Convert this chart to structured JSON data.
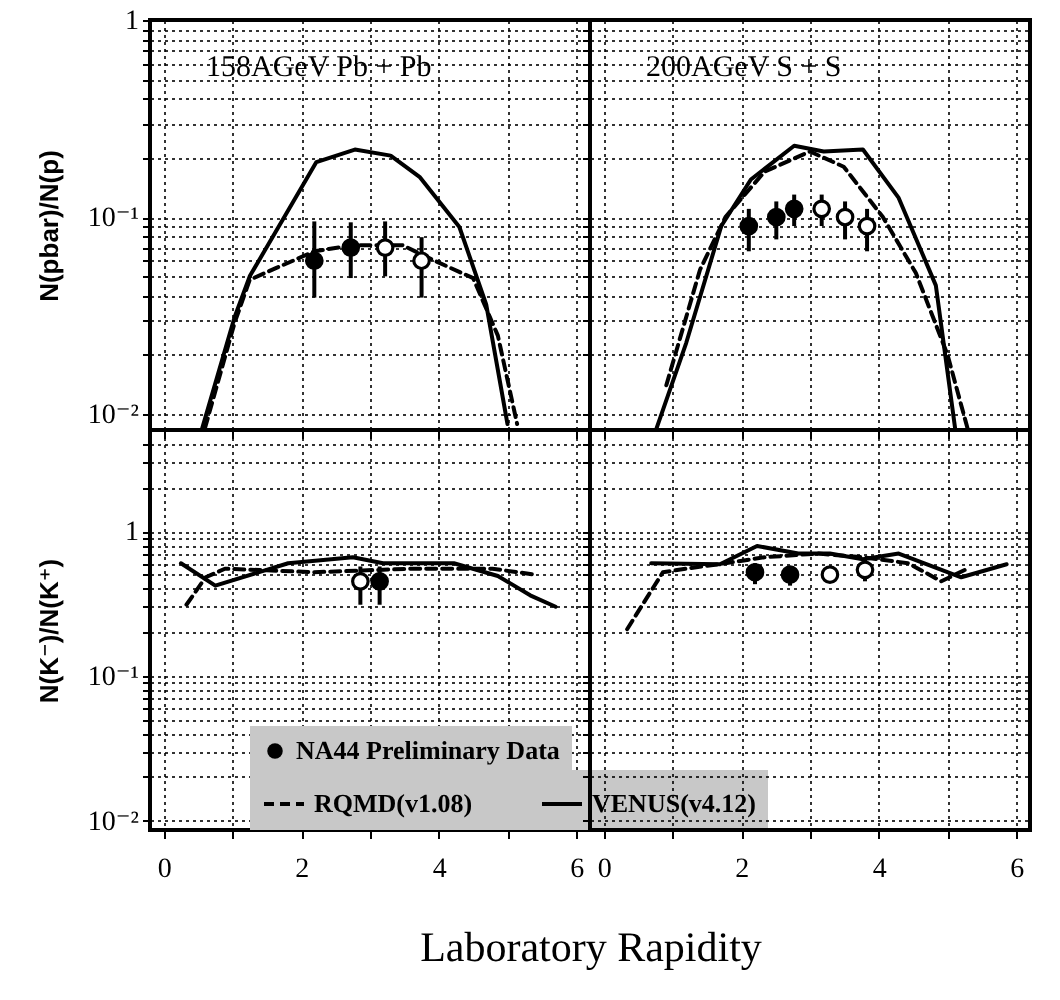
{
  "chart_data": [
    {
      "type": "line",
      "ylabel": "N(pbar)/N(p)",
      "annotations": [
        "158AGeV Pb + Pb"
      ],
      "xlim": [
        -0.2,
        6.2
      ],
      "ylim": [
        0.0083,
        1
      ],
      "log": "y",
      "grid": true,
      "tick_labels": "y",
      "xticks": [
        0,
        {
          "value": 1,
          "label": null
        },
        2,
        {
          "value": 3,
          "label": null
        },
        4,
        {
          "value": 5,
          "label": null
        },
        6
      ],
      "yticks": [
        {
          "value": 0.01,
          "label": "10⁻²"
        },
        {
          "value": 0.02,
          "label": null
        },
        {
          "value": 0.03,
          "label": null
        },
        {
          "value": 0.04,
          "label": null
        },
        {
          "value": 0.05,
          "label": null
        },
        {
          "value": 0.06,
          "label": null
        },
        {
          "value": 0.07,
          "label": null
        },
        {
          "value": 0.08,
          "label": null
        },
        {
          "value": 0.09,
          "label": null
        },
        {
          "value": 0.1,
          "label": "10⁻¹"
        },
        {
          "value": 0.2,
          "label": null
        },
        {
          "value": 0.3,
          "label": null
        },
        {
          "value": 0.4,
          "label": null
        },
        {
          "value": 0.5,
          "label": null
        },
        {
          "value": 0.6,
          "label": null
        },
        {
          "value": 0.7,
          "label": null
        },
        {
          "value": 0.8,
          "label": null
        },
        {
          "value": 0.9,
          "label": null
        },
        1
      ],
      "series": [
        {
          "type": "line",
          "line_style": "dashed",
          "color": "#000000",
          "x": [
            0.6,
            1.03,
            1.25,
            1.63,
            2.19,
            2.75,
            3.47,
            3.94,
            4.5,
            4.86,
            5.14
          ],
          "values": [
            0.0085,
            0.029,
            0.048,
            0.055,
            0.067,
            0.072,
            0.072,
            0.06,
            0.049,
            0.025,
            0.0089
          ]
        },
        {
          "type": "line",
          "line_style": "solid",
          "color": "#000000",
          "x": [
            0.56,
            1.03,
            1.25,
            2.22,
            2.78,
            3.3,
            3.72,
            4.3,
            4.69,
            5.0
          ],
          "values": [
            0.0085,
            0.031,
            0.05,
            0.19,
            0.22,
            0.205,
            0.16,
            0.089,
            0.036,
            0.0089
          ]
        },
        {
          "type": "scatter",
          "marker": "circle",
          "color": "#000000",
          "x": [
            2.19,
            2.72
          ],
          "values": [
            0.06,
            0.07
          ],
          "errors": [
            [
              0.039,
              0.095
            ],
            [
              0.049,
              0.094
            ]
          ]
        },
        {
          "type": "scatter",
          "marker": "circle",
          "color": "#ffffff",
          "x": [
            3.22,
            3.75
          ],
          "values": [
            0.07,
            0.06
          ],
          "errors": [
            [
              0.05,
              0.095
            ],
            [
              0.039,
              0.079
            ]
          ]
        }
      ]
    },
    {
      "type": "line",
      "annotations": [
        "200AGeV S + S"
      ],
      "xlim": [
        -0.2,
        6.2
      ],
      "ylim": [
        0.0083,
        1
      ],
      "log": "y",
      "grid": true,
      "tick_labels": false,
      "xticks": [
        0,
        {
          "value": 1,
          "label": null
        },
        2,
        {
          "value": 3,
          "label": null
        },
        4,
        {
          "value": 5,
          "label": null
        },
        6
      ],
      "yticks": [
        {
          "value": 0.01,
          "label": null
        },
        {
          "value": 0.02,
          "label": null
        },
        {
          "value": 0.03,
          "label": null
        },
        {
          "value": 0.04,
          "label": null
        },
        {
          "value": 0.05,
          "label": null
        },
        {
          "value": 0.06,
          "label": null
        },
        {
          "value": 0.07,
          "label": null
        },
        {
          "value": 0.08,
          "label": null
        },
        {
          "value": 0.09,
          "label": null
        },
        {
          "value": 0.1,
          "label": null
        },
        {
          "value": 0.2,
          "label": null
        },
        {
          "value": 0.3,
          "label": null
        },
        {
          "value": 0.4,
          "label": null
        },
        {
          "value": 0.5,
          "label": null
        },
        {
          "value": 0.6,
          "label": null
        },
        {
          "value": 0.7,
          "label": null
        },
        {
          "value": 0.8,
          "label": null
        },
        {
          "value": 0.9,
          "label": null
        }
      ],
      "series": [
        {
          "type": "line",
          "line_style": "dashed",
          "color": "#000000",
          "x": [
            0.91,
            1.4,
            1.77,
            2.34,
            3.0,
            3.49,
            4.06,
            4.54,
            5.0,
            5.29
          ],
          "values": [
            0.014,
            0.054,
            0.1,
            0.17,
            0.215,
            0.18,
            0.1,
            0.052,
            0.02,
            0.0085
          ]
        },
        {
          "type": "line",
          "line_style": "solid",
          "color": "#000000",
          "x": [
            0.77,
            1.2,
            1.71,
            2.14,
            2.77,
            3.2,
            3.77,
            4.29,
            4.83,
            5.11
          ],
          "values": [
            0.0085,
            0.023,
            0.09,
            0.155,
            0.23,
            0.215,
            0.22,
            0.125,
            0.045,
            0.0085
          ]
        },
        {
          "type": "scatter",
          "marker": "circle",
          "color": "#000000",
          "x": [
            2.11,
            2.51,
            2.77
          ],
          "values": [
            0.09,
            0.1,
            0.11
          ],
          "errors": [
            [
              0.067,
              0.11
            ],
            [
              0.077,
              0.12
            ],
            [
              0.09,
              0.13
            ]
          ]
        },
        {
          "type": "scatter",
          "marker": "circle",
          "color": "#ffffff",
          "x": [
            3.17,
            3.51,
            3.83
          ],
          "values": [
            0.11,
            0.1,
            0.09
          ],
          "errors": [
            [
              0.09,
              0.13
            ],
            [
              0.077,
              0.12
            ],
            [
              0.067,
              0.11
            ]
          ]
        }
      ]
    },
    {
      "type": "line",
      "ylabel": "N(K⁻)/N(K⁺)",
      "xlabel": "Laboratory Rapidity",
      "xlim": [
        -0.2,
        6.2
      ],
      "ylim": [
        0.0086,
        5
      ],
      "log": "y",
      "grid": true,
      "legend": "bottom",
      "xticks": [
        0,
        {
          "value": 1,
          "label": null
        },
        2,
        {
          "value": 3,
          "label": null
        },
        4,
        {
          "value": 5,
          "label": null
        },
        6
      ],
      "yticks": [
        {
          "value": 0.01,
          "label": "10⁻²"
        },
        {
          "value": 0.02,
          "label": null
        },
        {
          "value": 0.03,
          "label": null
        },
        {
          "value": 0.04,
          "label": null
        },
        {
          "value": 0.05,
          "label": null
        },
        {
          "value": 0.06,
          "label": null
        },
        {
          "value": 0.07,
          "label": null
        },
        {
          "value": 0.08,
          "label": null
        },
        {
          "value": 0.09,
          "label": null
        },
        {
          "value": 0.1,
          "label": "10⁻¹"
        },
        {
          "value": 0.2,
          "label": null
        },
        {
          "value": 0.3,
          "label": null
        },
        {
          "value": 0.4,
          "label": null
        },
        {
          "value": 0.5,
          "label": null
        },
        {
          "value": 0.6,
          "label": null
        },
        {
          "value": 0.7,
          "label": null
        },
        {
          "value": 0.8,
          "label": null
        },
        {
          "value": 0.9,
          "label": null
        },
        1,
        {
          "value": 2,
          "label": null
        },
        {
          "value": 3,
          "label": null
        },
        {
          "value": 4,
          "label": null
        }
      ],
      "series": [
        {
          "name": "RQMD(v1.08)",
          "type": "line",
          "line_style": "dashed",
          "color": "#000000",
          "x": [
            0.33,
            0.61,
            0.89,
            2.19,
            3.6,
            4.78,
            5.4
          ],
          "values": [
            0.31,
            0.48,
            0.55,
            0.52,
            0.55,
            0.55,
            0.5
          ]
        },
        {
          "name": "VENUS(v4.12)",
          "type": "line",
          "line_style": "solid",
          "color": "#000000",
          "x": [
            0.25,
            0.75,
            1.81,
            2.75,
            3.19,
            4.22,
            4.86,
            5.33,
            5.7
          ],
          "values": [
            0.6,
            0.42,
            0.6,
            0.66,
            0.6,
            0.6,
            0.49,
            0.36,
            0.3
          ]
        },
        {
          "type": "scatter",
          "marker": "circle",
          "color": "#ffffff",
          "x": [
            2.86
          ],
          "values": [
            0.45
          ],
          "errors": [
            [
              0.31,
              0.57
            ]
          ]
        },
        {
          "name": "NA44 Preliminary Data",
          "type": "scatter",
          "marker": "circle",
          "color": "#000000",
          "x": [
            3.14
          ],
          "values": [
            0.45
          ],
          "errors": [
            [
              0.31,
              0.57
            ]
          ]
        }
      ]
    },
    {
      "type": "line",
      "xlim": [
        -0.2,
        6.2
      ],
      "ylim": [
        0.0086,
        5
      ],
      "log": "y",
      "grid": true,
      "tick_labels": "x",
      "xticks": [
        0,
        {
          "value": 1,
          "label": null
        },
        2,
        {
          "value": 3,
          "label": null
        },
        4,
        {
          "value": 5,
          "label": null
        },
        6
      ],
      "yticks": [
        {
          "value": 0.01,
          "label": null
        },
        {
          "value": 0.02,
          "label": null
        },
        {
          "value": 0.03,
          "label": null
        },
        {
          "value": 0.04,
          "label": null
        },
        {
          "value": 0.05,
          "label": null
        },
        {
          "value": 0.06,
          "label": null
        },
        {
          "value": 0.07,
          "label": null
        },
        {
          "value": 0.08,
          "label": null
        },
        {
          "value": 0.09,
          "label": null
        },
        {
          "value": 0.1,
          "label": null
        },
        {
          "value": 0.2,
          "label": null
        },
        {
          "value": 0.3,
          "label": null
        },
        {
          "value": 0.4,
          "label": null
        },
        {
          "value": 0.5,
          "label": null
        },
        {
          "value": 0.6,
          "label": null
        },
        {
          "value": 0.7,
          "label": null
        },
        {
          "value": 0.8,
          "label": null
        },
        {
          "value": 0.9,
          "label": null
        },
        {
          "value": 1,
          "label": null
        },
        {
          "value": 2,
          "label": null
        },
        {
          "value": 3,
          "label": null
        },
        {
          "value": 4,
          "label": null
        }
      ],
      "series": [
        {
          "type": "line",
          "line_style": "dashed",
          "color": "#000000",
          "x": [
            0.34,
            0.86,
            1.2,
            1.77,
            2.34,
            3.11,
            3.77,
            4.43,
            4.91,
            5.29
          ],
          "values": [
            0.21,
            0.52,
            0.55,
            0.6,
            0.66,
            0.7,
            0.66,
            0.6,
            0.45,
            0.55
          ]
        },
        {
          "type": "line",
          "line_style": "solid",
          "color": "#000000",
          "x": [
            0.69,
            1.69,
            2.23,
            2.83,
            3.29,
            3.77,
            4.29,
            5.2,
            5.86
          ],
          "values": [
            0.6,
            0.59,
            0.79,
            0.7,
            0.7,
            0.64,
            0.7,
            0.48,
            0.59
          ]
        },
        {
          "type": "scatter",
          "marker": "circle",
          "color": "#000000",
          "x": [
            2.2,
            2.71
          ],
          "values": [
            0.52,
            0.5
          ],
          "errors": [
            [
              0.43,
              0.6
            ],
            [
              0.42,
              0.57
            ]
          ]
        },
        {
          "type": "scatter",
          "marker": "circle",
          "color": "#ffffff",
          "x": [
            3.29,
            3.8
          ],
          "values": [
            0.5,
            0.54
          ],
          "errors": [
            [
              0.45,
              0.55
            ],
            [
              0.45,
              0.65
            ]
          ]
        }
      ]
    }
  ]
}
